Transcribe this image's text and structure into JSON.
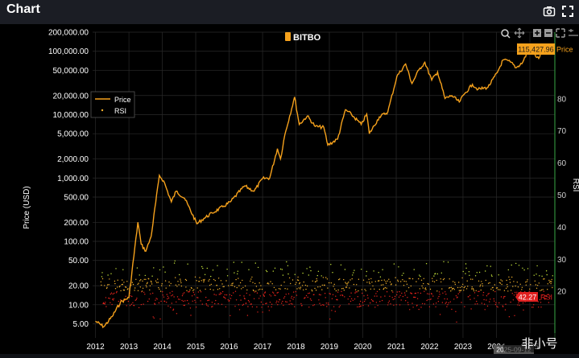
{
  "header": {
    "title": "Chart",
    "icons": [
      "camera-icon",
      "fullscreen-icon"
    ]
  },
  "logo": "BITBO",
  "watermark": "非小号",
  "colors": {
    "price": "#f5a11c",
    "rsi_high": "#c9e83c",
    "rsi_mid": "#f1b02c",
    "rsi_low": "#e8231c",
    "background": "#000000",
    "header_bg": "#1b1d24",
    "rsi_axis": "#2e8b3a",
    "price_badge": "#f5a11c",
    "rsi_badge": "#e02020"
  },
  "toolbar_icons": [
    "zoom-icon",
    "pan-icon",
    "zoom-in-icon",
    "zoom-out-icon",
    "autoscale-icon",
    "reset-axes-icon"
  ],
  "chart_data": {
    "type": "line",
    "ylabel": "Price (USD)",
    "y2label": "RSI",
    "yscale": "log",
    "ylim": [
      3,
      200000
    ],
    "y2lim": [
      0,
      100
    ],
    "y_ticks": [
      "5.00",
      "10.00",
      "20.00",
      "50.00",
      "100.00",
      "200.00",
      "500.00",
      "1,000.00",
      "2,000.00",
      "5,000.00",
      "10,000.00",
      "20,000.00",
      "50,000.00",
      "100,000.00",
      "200,000.00"
    ],
    "y2_ticks": [
      "20",
      "30",
      "40",
      "50",
      "60",
      "70",
      "80"
    ],
    "x_ticks": [
      "2012",
      "2013",
      "2014",
      "2015",
      "2016",
      "2017",
      "2018",
      "2019",
      "2020",
      "2021",
      "2022",
      "2023",
      "2024",
      "2025"
    ],
    "legend": [
      "Price",
      "RSI"
    ],
    "legend_position": "top-left",
    "grid": true,
    "last_price_label": "115,427.96",
    "last_price_series": "Price",
    "last_rsi_label": "42.27",
    "last_rsi_series": "RSI",
    "last_date": "2025-09-12",
    "series": [
      {
        "name": "Price",
        "x": [
          "2012-01-01",
          "2012-04-01",
          "2012-07-01",
          "2012-10-01",
          "2013-01-01",
          "2013-04-09",
          "2013-05-15",
          "2013-07-05",
          "2013-09-01",
          "2013-11-30",
          "2014-01-15",
          "2014-04-10",
          "2014-06-01",
          "2014-09-01",
          "2015-01-14",
          "2015-04-01",
          "2015-07-01",
          "2015-11-05",
          "2016-01-15",
          "2016-06-18",
          "2016-10-01",
          "2017-01-01",
          "2017-03-20",
          "2017-06-12",
          "2017-07-16",
          "2017-09-01",
          "2017-12-17",
          "2018-02-06",
          "2018-05-05",
          "2018-08-01",
          "2018-11-01",
          "2018-12-15",
          "2019-04-01",
          "2019-06-26",
          "2019-09-01",
          "2019-12-15",
          "2020-02-14",
          "2020-03-13",
          "2020-07-01",
          "2020-10-01",
          "2021-01-08",
          "2021-04-14",
          "2021-06-22",
          "2021-09-07",
          "2021-11-10",
          "2022-01-24",
          "2022-03-29",
          "2022-06-18",
          "2022-09-01",
          "2022-11-21",
          "2023-01-15",
          "2023-04-14",
          "2023-06-15",
          "2023-10-01",
          "2024-01-11",
          "2024-03-14",
          "2024-06-01",
          "2024-08-05",
          "2024-10-15",
          "2024-12-17",
          "2025-04-08",
          "2025-05-22",
          "2025-07-14",
          "2025-08-14",
          "2025-09-12"
        ],
        "values": [
          5.5,
          4.5,
          6.5,
          11,
          13,
          200,
          90,
          70,
          120,
          1100,
          900,
          420,
          620,
          480,
          190,
          230,
          280,
          360,
          420,
          750,
          620,
          980,
          1000,
          2900,
          2000,
          4800,
          19000,
          7000,
          9500,
          6500,
          6300,
          3300,
          4100,
          12000,
          10000,
          7000,
          10200,
          5000,
          9200,
          11000,
          40000,
          63000,
          31000,
          51000,
          67000,
          35000,
          47000,
          18000,
          20000,
          15800,
          21000,
          30000,
          25000,
          27000,
          46000,
          73000,
          68000,
          55000,
          67000,
          106000,
          77000,
          110000,
          120000,
          123000,
          115427.96
        ]
      },
      {
        "name": "RSI",
        "representation": "daily dot scatter on right axis, colour-graded from red (low) to yellow-green (high); values mostly between 15 and 30 on the displayed RSI axis"
      }
    ]
  }
}
